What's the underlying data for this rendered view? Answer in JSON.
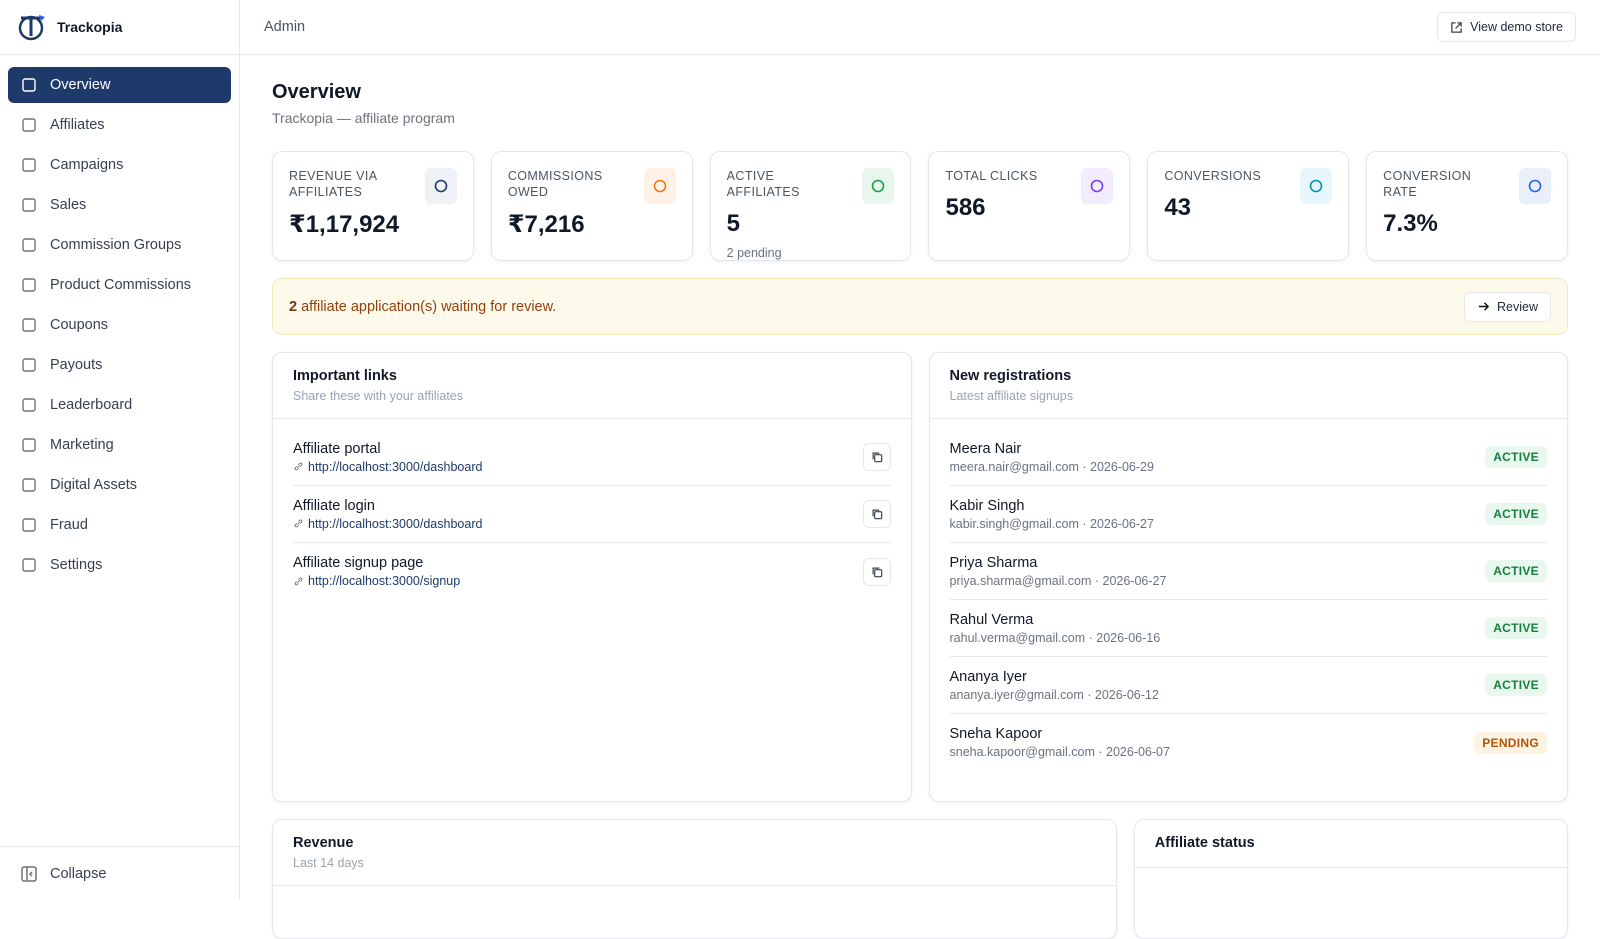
{
  "app": {
    "name": "Trackopia"
  },
  "sidebar": {
    "items": [
      "Overview",
      "Affiliates",
      "Campaigns",
      "Sales",
      "Commission Groups",
      "Product Commissions",
      "Coupons",
      "Payouts",
      "Leaderboard",
      "Marketing",
      "Digital Assets",
      "Fraud",
      "Settings"
    ],
    "collapse": "Collapse"
  },
  "topbar": {
    "section": "Admin",
    "button": "View demo store"
  },
  "header": {
    "title": "Overview",
    "subtitle": "Trackopia — affiliate program"
  },
  "stats": [
    {
      "label": "REVENUE VIA AFFILIATES",
      "value": "₹1,17,924"
    },
    {
      "label": "COMMISSIONS OWED",
      "value": "₹7,216"
    },
    {
      "label": "ACTIVE AFFILIATES",
      "value": "5",
      "note": "2 pending"
    },
    {
      "label": "TOTAL CLICKS",
      "value": "586"
    },
    {
      "label": "CONVERSIONS",
      "value": "43"
    },
    {
      "label": "CONVERSION RATE",
      "value": "7.3%"
    }
  ],
  "alert": {
    "count": "2",
    "text": "affiliate application(s) waiting for review.",
    "button": "Review"
  },
  "links": {
    "title": "Important links",
    "subtitle": "Share these with your affiliates",
    "items": [
      {
        "label": "Affiliate portal",
        "url": "http://localhost:3000/dashboard"
      },
      {
        "label": "Affiliate login",
        "url": "http://localhost:3000/dashboard"
      },
      {
        "label": "Affiliate signup page",
        "url": "http://localhost:3000/signup"
      }
    ]
  },
  "registrations": {
    "title": "New registrations",
    "subtitle": "Latest affiliate signups",
    "items": [
      {
        "name": "Meera Nair",
        "meta": "meera.nair@gmail.com · 2026-06-29",
        "status": "ACTIVE"
      },
      {
        "name": "Kabir Singh",
        "meta": "kabir.singh@gmail.com · 2026-06-27",
        "status": "ACTIVE"
      },
      {
        "name": "Priya Sharma",
        "meta": "priya.sharma@gmail.com · 2026-06-27",
        "status": "ACTIVE"
      },
      {
        "name": "Rahul Verma",
        "meta": "rahul.verma@gmail.com · 2026-06-16",
        "status": "ACTIVE"
      },
      {
        "name": "Ananya Iyer",
        "meta": "ananya.iyer@gmail.com · 2026-06-12",
        "status": "ACTIVE"
      },
      {
        "name": "Sneha Kapoor",
        "meta": "sneha.kapoor@gmail.com · 2026-06-07",
        "status": "PENDING"
      }
    ]
  },
  "revenue": {
    "title": "Revenue",
    "subtitle": "Last 14 days"
  },
  "affiliate_status": {
    "title": "Affiliate status"
  }
}
